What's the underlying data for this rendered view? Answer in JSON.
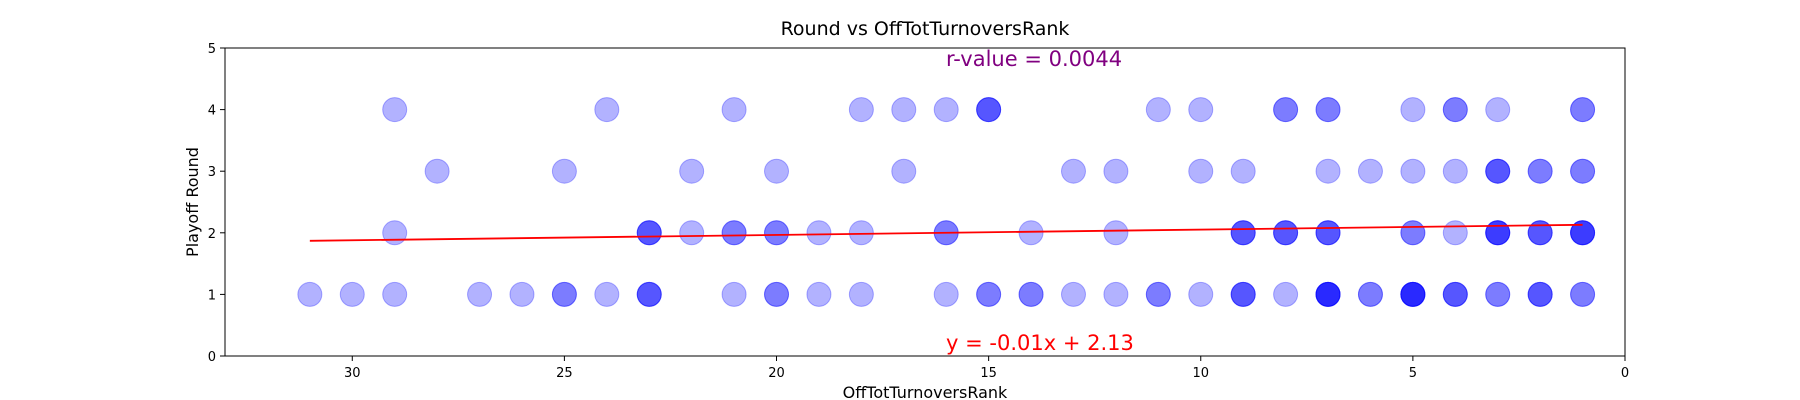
{
  "chart_data": {
    "type": "scatter",
    "title": "Round vs OffTotTurnoversRank",
    "xlabel": "OffTotTurnoversRank",
    "ylabel": "Playoff Round",
    "xlim": [
      33,
      0
    ],
    "ylim": [
      0,
      5
    ],
    "x_inverted": true,
    "xticks": [
      30,
      25,
      20,
      15,
      10,
      5,
      0
    ],
    "yticks": [
      0,
      1,
      2,
      3,
      4,
      5
    ],
    "grid": false,
    "point_color": "#0000ff",
    "point_alpha": 0.3,
    "points": [
      {
        "x": 31,
        "y": 1,
        "n": 1
      },
      {
        "x": 30,
        "y": 1,
        "n": 1
      },
      {
        "x": 29,
        "y": 1,
        "n": 1
      },
      {
        "x": 29,
        "y": 2,
        "n": 1
      },
      {
        "x": 29,
        "y": 4,
        "n": 1
      },
      {
        "x": 28,
        "y": 3,
        "n": 1
      },
      {
        "x": 27,
        "y": 1,
        "n": 1
      },
      {
        "x": 26,
        "y": 1,
        "n": 1
      },
      {
        "x": 25,
        "y": 1,
        "n": 2
      },
      {
        "x": 25,
        "y": 3,
        "n": 1
      },
      {
        "x": 24,
        "y": 1,
        "n": 1
      },
      {
        "x": 24,
        "y": 4,
        "n": 1
      },
      {
        "x": 23,
        "y": 1,
        "n": 3
      },
      {
        "x": 23,
        "y": 2,
        "n": 3
      },
      {
        "x": 22,
        "y": 2,
        "n": 1
      },
      {
        "x": 22,
        "y": 3,
        "n": 1
      },
      {
        "x": 21,
        "y": 1,
        "n": 1
      },
      {
        "x": 21,
        "y": 2,
        "n": 2
      },
      {
        "x": 21,
        "y": 4,
        "n": 1
      },
      {
        "x": 20,
        "y": 1,
        "n": 2
      },
      {
        "x": 20,
        "y": 2,
        "n": 2
      },
      {
        "x": 20,
        "y": 3,
        "n": 1
      },
      {
        "x": 19,
        "y": 1,
        "n": 1
      },
      {
        "x": 19,
        "y": 2,
        "n": 1
      },
      {
        "x": 18,
        "y": 1,
        "n": 1
      },
      {
        "x": 18,
        "y": 2,
        "n": 1
      },
      {
        "x": 18,
        "y": 4,
        "n": 1
      },
      {
        "x": 17,
        "y": 3,
        "n": 1
      },
      {
        "x": 17,
        "y": 4,
        "n": 1
      },
      {
        "x": 16,
        "y": 1,
        "n": 1
      },
      {
        "x": 16,
        "y": 2,
        "n": 2
      },
      {
        "x": 16,
        "y": 4,
        "n": 1
      },
      {
        "x": 15,
        "y": 1,
        "n": 2
      },
      {
        "x": 15,
        "y": 4,
        "n": 3
      },
      {
        "x": 14,
        "y": 1,
        "n": 2
      },
      {
        "x": 14,
        "y": 2,
        "n": 1
      },
      {
        "x": 13,
        "y": 1,
        "n": 1
      },
      {
        "x": 13,
        "y": 3,
        "n": 1
      },
      {
        "x": 12,
        "y": 1,
        "n": 1
      },
      {
        "x": 12,
        "y": 2,
        "n": 1
      },
      {
        "x": 12,
        "y": 3,
        "n": 1
      },
      {
        "x": 11,
        "y": 1,
        "n": 2
      },
      {
        "x": 11,
        "y": 4,
        "n": 1
      },
      {
        "x": 10,
        "y": 1,
        "n": 1
      },
      {
        "x": 10,
        "y": 3,
        "n": 1
      },
      {
        "x": 10,
        "y": 4,
        "n": 1
      },
      {
        "x": 9,
        "y": 1,
        "n": 3
      },
      {
        "x": 9,
        "y": 2,
        "n": 3
      },
      {
        "x": 9,
        "y": 3,
        "n": 1
      },
      {
        "x": 8,
        "y": 1,
        "n": 1
      },
      {
        "x": 8,
        "y": 2,
        "n": 3
      },
      {
        "x": 8,
        "y": 4,
        "n": 2
      },
      {
        "x": 7,
        "y": 1,
        "n": 5
      },
      {
        "x": 7,
        "y": 2,
        "n": 3
      },
      {
        "x": 7,
        "y": 3,
        "n": 1
      },
      {
        "x": 7,
        "y": 4,
        "n": 2
      },
      {
        "x": 6,
        "y": 1,
        "n": 2
      },
      {
        "x": 6,
        "y": 3,
        "n": 1
      },
      {
        "x": 5,
        "y": 1,
        "n": 5
      },
      {
        "x": 5,
        "y": 2,
        "n": 2
      },
      {
        "x": 5,
        "y": 3,
        "n": 1
      },
      {
        "x": 5,
        "y": 4,
        "n": 1
      },
      {
        "x": 4,
        "y": 1,
        "n": 3
      },
      {
        "x": 4,
        "y": 2,
        "n": 1
      },
      {
        "x": 4,
        "y": 3,
        "n": 1
      },
      {
        "x": 4,
        "y": 4,
        "n": 2
      },
      {
        "x": 3,
        "y": 1,
        "n": 2
      },
      {
        "x": 3,
        "y": 2,
        "n": 4
      },
      {
        "x": 3,
        "y": 3,
        "n": 3
      },
      {
        "x": 3,
        "y": 4,
        "n": 1
      },
      {
        "x": 2,
        "y": 1,
        "n": 3
      },
      {
        "x": 2,
        "y": 2,
        "n": 3
      },
      {
        "x": 2,
        "y": 3,
        "n": 2
      },
      {
        "x": 1,
        "y": 1,
        "n": 2
      },
      {
        "x": 1,
        "y": 2,
        "n": 4
      },
      {
        "x": 1,
        "y": 3,
        "n": 2
      },
      {
        "x": 1,
        "y": 4,
        "n": 2
      }
    ],
    "regression": {
      "color": "#ff0000",
      "slope": -0.01,
      "intercept": 2.13,
      "x_range": [
        31,
        1
      ],
      "y_at_range": [
        1.87,
        2.13
      ]
    },
    "annotations": {
      "r_value": {
        "text": "r-value = 0.0044",
        "color": "#800080"
      },
      "equation": {
        "text": "y = -0.01x + 2.13",
        "color": "#ff0000"
      }
    }
  }
}
